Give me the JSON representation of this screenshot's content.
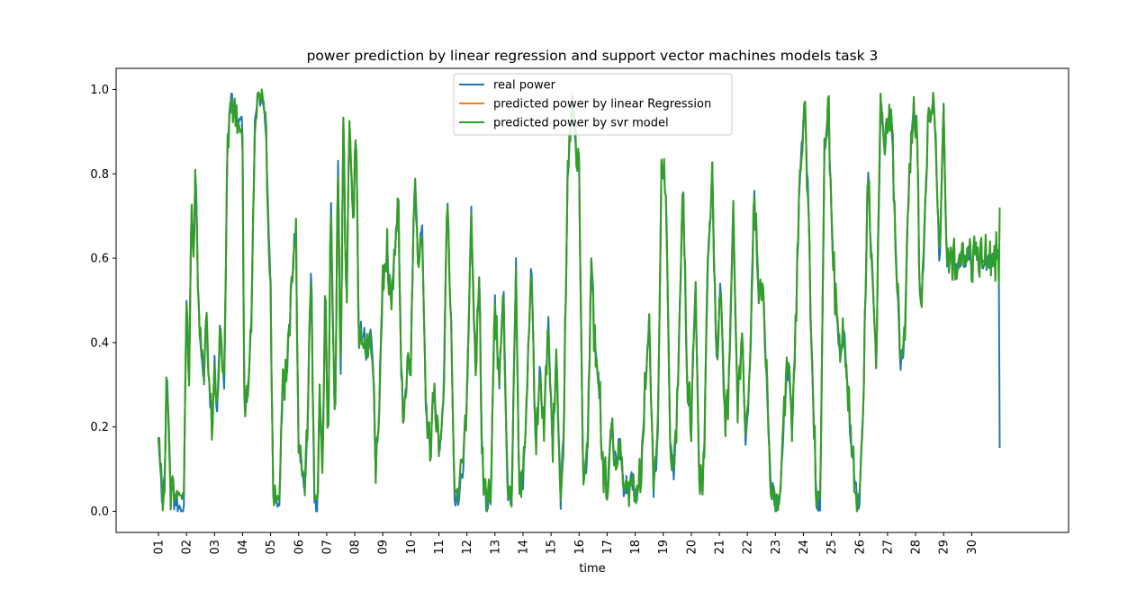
{
  "chart_data": {
    "type": "line",
    "title": "power prediction by linear regression and support vector machines models task 3",
    "xlabel": "time",
    "ylabel": "",
    "ylim": [
      -0.05,
      1.05
    ],
    "y_ticks": [
      0.0,
      0.2,
      0.4,
      0.6,
      0.8,
      1.0
    ],
    "y_tick_labels": [
      "0.0",
      "0.2",
      "0.4",
      "0.6",
      "0.8",
      "1.0"
    ],
    "x_tick_labels": [
      "01",
      "02",
      "03",
      "04",
      "05",
      "06",
      "07",
      "08",
      "09",
      "10",
      "11",
      "12",
      "13",
      "14",
      "15",
      "16",
      "17",
      "18",
      "19",
      "20",
      "21",
      "22",
      "23",
      "24",
      "25",
      "26",
      "27",
      "28",
      "29",
      "30"
    ],
    "grid": false,
    "legend_position": "upper-center",
    "x_unit": "day",
    "x_range": [
      1,
      31
    ],
    "anchors": [
      [
        1.0,
        0.17
      ],
      [
        1.1,
        0.05
      ],
      [
        1.2,
        0.04
      ],
      [
        1.3,
        0.32
      ],
      [
        1.45,
        0.04
      ],
      [
        1.6,
        0.03
      ],
      [
        1.8,
        0.0
      ],
      [
        1.9,
        0.0
      ],
      [
        2.0,
        0.5
      ],
      [
        2.1,
        0.32
      ],
      [
        2.18,
        0.75
      ],
      [
        2.25,
        0.6
      ],
      [
        2.33,
        0.82
      ],
      [
        2.42,
        0.5
      ],
      [
        2.5,
        0.42
      ],
      [
        2.6,
        0.3
      ],
      [
        2.7,
        0.45
      ],
      [
        2.8,
        0.3
      ],
      [
        2.9,
        0.2
      ],
      [
        3.0,
        0.35
      ],
      [
        3.1,
        0.22
      ],
      [
        3.2,
        0.45
      ],
      [
        3.35,
        0.28
      ],
      [
        3.45,
        0.85
      ],
      [
        3.6,
        0.98
      ],
      [
        3.75,
        0.95
      ],
      [
        3.9,
        0.92
      ],
      [
        4.0,
        0.9
      ],
      [
        4.05,
        0.3
      ],
      [
        4.15,
        0.28
      ],
      [
        4.3,
        0.4
      ],
      [
        4.45,
        0.96
      ],
      [
        4.6,
        0.99
      ],
      [
        4.75,
        0.95
      ],
      [
        4.85,
        0.85
      ],
      [
        5.0,
        0.5
      ],
      [
        5.1,
        0.05
      ],
      [
        5.2,
        0.0
      ],
      [
        5.3,
        0.02
      ],
      [
        5.45,
        0.3
      ],
      [
        5.6,
        0.35
      ],
      [
        5.75,
        0.55
      ],
      [
        5.9,
        0.68
      ],
      [
        6.0,
        0.15
      ],
      [
        6.1,
        0.08
      ],
      [
        6.2,
        0.05
      ],
      [
        6.3,
        0.15
      ],
      [
        6.45,
        0.6
      ],
      [
        6.55,
        0.05
      ],
      [
        6.65,
        0.0
      ],
      [
        6.75,
        0.25
      ],
      [
        6.85,
        0.1
      ],
      [
        6.95,
        0.55
      ],
      [
        7.05,
        0.15
      ],
      [
        7.15,
        0.75
      ],
      [
        7.3,
        0.2
      ],
      [
        7.4,
        0.85
      ],
      [
        7.5,
        0.3
      ],
      [
        7.6,
        0.95
      ],
      [
        7.7,
        0.45
      ],
      [
        7.8,
        0.9
      ],
      [
        7.95,
        0.7
      ],
      [
        8.05,
        0.9
      ],
      [
        8.15,
        0.4
      ],
      [
        8.3,
        0.45
      ],
      [
        8.45,
        0.35
      ],
      [
        8.6,
        0.44
      ],
      [
        8.75,
        0.1
      ],
      [
        8.85,
        0.2
      ],
      [
        9.0,
        0.55
      ],
      [
        9.15,
        0.62
      ],
      [
        9.3,
        0.5
      ],
      [
        9.45,
        0.65
      ],
      [
        9.55,
        0.75
      ],
      [
        9.65,
        0.35
      ],
      [
        9.75,
        0.22
      ],
      [
        9.85,
        0.3
      ],
      [
        10.0,
        0.38
      ],
      [
        10.15,
        0.8
      ],
      [
        10.25,
        0.6
      ],
      [
        10.4,
        0.7
      ],
      [
        10.55,
        0.2
      ],
      [
        10.7,
        0.17
      ],
      [
        10.85,
        0.3
      ],
      [
        11.0,
        0.15
      ],
      [
        11.15,
        0.25
      ],
      [
        11.3,
        0.75
      ],
      [
        11.45,
        0.4
      ],
      [
        11.55,
        0.05
      ],
      [
        11.7,
        0.02
      ],
      [
        11.85,
        0.1
      ],
      [
        12.0,
        0.25
      ],
      [
        12.15,
        0.72
      ],
      [
        12.3,
        0.35
      ],
      [
        12.45,
        0.55
      ],
      [
        12.55,
        0.1
      ],
      [
        12.7,
        0.02
      ],
      [
        12.85,
        0.03
      ],
      [
        13.0,
        0.5
      ],
      [
        13.15,
        0.3
      ],
      [
        13.3,
        0.55
      ],
      [
        13.45,
        0.05
      ],
      [
        13.6,
        0.02
      ],
      [
        13.75,
        0.58
      ],
      [
        13.85,
        0.1
      ],
      [
        14.0,
        0.05
      ],
      [
        14.15,
        0.3
      ],
      [
        14.3,
        0.58
      ],
      [
        14.45,
        0.15
      ],
      [
        14.6,
        0.32
      ],
      [
        14.75,
        0.2
      ],
      [
        14.9,
        0.45
      ],
      [
        15.05,
        0.15
      ],
      [
        15.2,
        0.38
      ],
      [
        15.35,
        0.02
      ],
      [
        15.45,
        0.2
      ],
      [
        15.6,
        0.8
      ],
      [
        15.75,
        0.95
      ],
      [
        15.9,
        0.85
      ],
      [
        16.0,
        0.8
      ],
      [
        16.15,
        0.05
      ],
      [
        16.3,
        0.15
      ],
      [
        16.45,
        0.62
      ],
      [
        16.55,
        0.4
      ],
      [
        16.7,
        0.32
      ],
      [
        16.85,
        0.1
      ],
      [
        17.0,
        0.05
      ],
      [
        17.15,
        0.2
      ],
      [
        17.3,
        0.1
      ],
      [
        17.45,
        0.18
      ],
      [
        17.6,
        0.06
      ],
      [
        17.75,
        0.05
      ],
      [
        17.9,
        0.08
      ],
      [
        18.05,
        0.03
      ],
      [
        18.2,
        0.1
      ],
      [
        18.35,
        0.3
      ],
      [
        18.5,
        0.45
      ],
      [
        18.65,
        0.06
      ],
      [
        18.8,
        0.15
      ],
      [
        18.95,
        0.85
      ],
      [
        19.1,
        0.75
      ],
      [
        19.25,
        0.15
      ],
      [
        19.4,
        0.08
      ],
      [
        19.55,
        0.35
      ],
      [
        19.7,
        0.8
      ],
      [
        19.85,
        0.3
      ],
      [
        20.0,
        0.2
      ],
      [
        20.15,
        0.55
      ],
      [
        20.3,
        0.05
      ],
      [
        20.45,
        0.1
      ],
      [
        20.6,
        0.6
      ],
      [
        20.75,
        0.8
      ],
      [
        20.9,
        0.35
      ],
      [
        21.05,
        0.55
      ],
      [
        21.2,
        0.2
      ],
      [
        21.35,
        0.3
      ],
      [
        21.5,
        0.68
      ],
      [
        21.65,
        0.25
      ],
      [
        21.8,
        0.43
      ],
      [
        21.95,
        0.15
      ],
      [
        22.1,
        0.35
      ],
      [
        22.25,
        0.78
      ],
      [
        22.4,
        0.5
      ],
      [
        22.55,
        0.55
      ],
      [
        22.7,
        0.3
      ],
      [
        22.85,
        0.05
      ],
      [
        23.0,
        0.02
      ],
      [
        23.15,
        0.02
      ],
      [
        23.3,
        0.22
      ],
      [
        23.45,
        0.35
      ],
      [
        23.6,
        0.2
      ],
      [
        23.75,
        0.5
      ],
      [
        23.9,
        0.85
      ],
      [
        24.05,
        0.93
      ],
      [
        24.15,
        0.8
      ],
      [
        24.3,
        0.35
      ],
      [
        24.45,
        0.05
      ],
      [
        24.6,
        0.0
      ],
      [
        24.75,
        0.85
      ],
      [
        24.9,
        0.95
      ],
      [
        25.0,
        0.7
      ],
      [
        25.15,
        0.5
      ],
      [
        25.3,
        0.35
      ],
      [
        25.45,
        0.45
      ],
      [
        25.6,
        0.25
      ],
      [
        25.75,
        0.15
      ],
      [
        25.9,
        0.05
      ],
      [
        26.0,
        0.02
      ],
      [
        26.15,
        0.3
      ],
      [
        26.3,
        0.8
      ],
      [
        26.45,
        0.58
      ],
      [
        26.6,
        0.35
      ],
      [
        26.75,
        0.97
      ],
      [
        26.9,
        0.85
      ],
      [
        27.05,
        0.95
      ],
      [
        27.15,
        0.92
      ],
      [
        27.3,
        0.6
      ],
      [
        27.45,
        0.36
      ],
      [
        27.6,
        0.4
      ],
      [
        27.75,
        0.75
      ],
      [
        27.9,
        0.96
      ],
      [
        28.05,
        0.93
      ],
      [
        28.15,
        0.5
      ],
      [
        28.3,
        0.6
      ],
      [
        28.45,
        0.94
      ],
      [
        28.6,
        0.96
      ],
      [
        28.7,
        0.93
      ],
      [
        28.85,
        0.55
      ],
      [
        29.0,
        0.95
      ],
      [
        29.1,
        0.6
      ]
    ],
    "legend": [
      {
        "name": "real power",
        "color": "#1f77b4"
      },
      {
        "name": "predicted power by linear Regression",
        "color": "#ff7f0e"
      },
      {
        "name": "predicted power by svr model",
        "color": "#2ca02c"
      }
    ]
  }
}
